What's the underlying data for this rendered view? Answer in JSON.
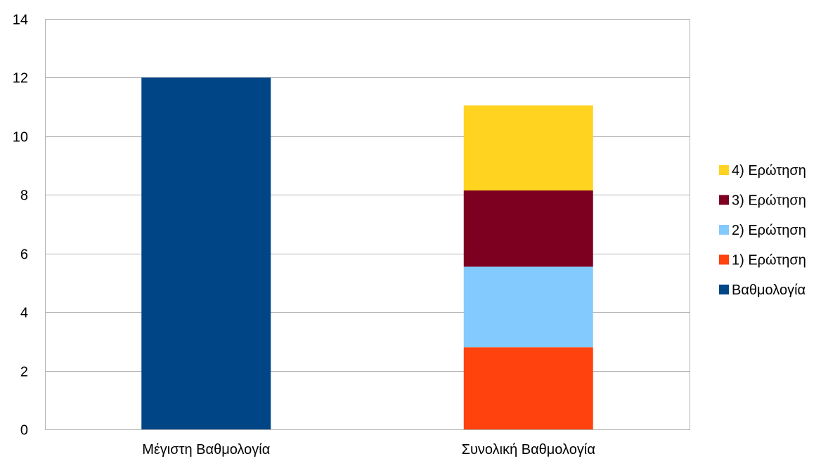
{
  "chart_data": {
    "type": "bar",
    "stacked": true,
    "title": "",
    "xlabel": "",
    "ylabel": "",
    "ylim": [
      0,
      14
    ],
    "yticks": [
      0,
      2,
      4,
      6,
      8,
      10,
      12,
      14
    ],
    "grid": true,
    "legend_position": "right",
    "categories": [
      "Μέγιστη Βαθμολογία",
      "Συνολική Βαθμολογία"
    ],
    "series": [
      {
        "name": "Βαθμολογία",
        "color": "#004586",
        "values": [
          12,
          0
        ]
      },
      {
        "name": "1) Ερώτηση",
        "color": "#FF420E",
        "values": [
          0,
          2.8
        ]
      },
      {
        "name": "2) Ερώτηση",
        "color": "#83CAFF",
        "values": [
          0,
          2.75
        ]
      },
      {
        "name": "3) Ερώτηση",
        "color": "#7E0021",
        "values": [
          0,
          2.6
        ]
      },
      {
        "name": "4) Ερώτηση",
        "color": "#FFD320",
        "values": [
          0,
          2.9
        ]
      }
    ],
    "legend_order": [
      "4) Ερώτηση",
      "3) Ερώτηση",
      "2) Ερώτηση",
      "1) Ερώτηση",
      "Βαθμολογία"
    ]
  }
}
